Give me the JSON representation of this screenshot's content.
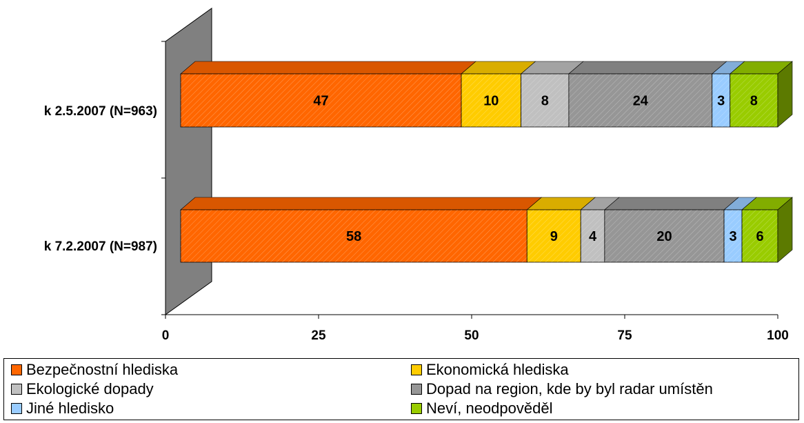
{
  "chart_data": {
    "type": "bar",
    "orientation": "horizontal",
    "stacked": true,
    "three_d": true,
    "categories": [
      "k 2.5.2007 (N=963)",
      "k 7.2.2007 (N=987)"
    ],
    "series": [
      {
        "name": "Bezpečnostní hlediska",
        "values": [
          47,
          58
        ],
        "color": "#FF6600"
      },
      {
        "name": "Ekonomická hlediska",
        "values": [
          10,
          9
        ],
        "color": "#FFCC00"
      },
      {
        "name": "Ekologické dopady",
        "values": [
          8,
          4
        ],
        "color": "#C0C0C0"
      },
      {
        "name": "Dopad na region, kde by byl radar umístěn",
        "values": [
          24,
          20
        ],
        "color": "#969696"
      },
      {
        "name": "Jiné hledisko",
        "values": [
          3,
          3
        ],
        "color": "#99CCFF"
      },
      {
        "name": "Neví, neodpověděl",
        "values": [
          8,
          6
        ],
        "color": "#99CC00"
      }
    ],
    "xlim": [
      0,
      100
    ],
    "xticks": [
      "0",
      "25",
      "50",
      "75",
      "100"
    ],
    "legend_position": "bottom",
    "grid": false
  }
}
